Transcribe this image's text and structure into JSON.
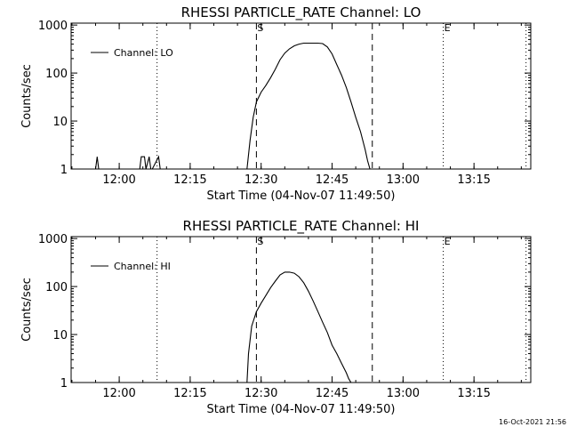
{
  "chart_data": [
    {
      "type": "line",
      "title": "RHESSI PARTICLE_RATE Channel: LO",
      "xlabel": "Start Time (04-Nov-07 11:49:50)",
      "ylabel": "Counts/sec",
      "yscale": "log",
      "ylim": [
        1,
        1000
      ],
      "xlim": [
        "11:49:50",
        "13:27:00"
      ],
      "x_ticks": [
        "12:00",
        "12:15",
        "12:30",
        "12:45",
        "13:00",
        "13:15"
      ],
      "y_ticks": [
        "1",
        "10",
        "100",
        "1000"
      ],
      "legend": {
        "label": "Channel: LO",
        "position": "top-left"
      },
      "grid": false,
      "markers": [
        {
          "label": "S",
          "time": "12:29:00",
          "style": "dashed"
        },
        {
          "label": "",
          "time": "12:53:30",
          "style": "dashed"
        },
        {
          "label": "",
          "time": "12:08:00",
          "style": "dotted"
        },
        {
          "label": "E",
          "time": "13:08:30",
          "style": "dotted"
        },
        {
          "label": "",
          "time": "13:26:00",
          "style": "dotted"
        }
      ],
      "series": [
        {
          "name": "Channel: LO",
          "x": [
            "11:55:00",
            "11:55:20",
            "11:55:40",
            "12:04:20",
            "12:04:40",
            "12:05:20",
            "12:05:40",
            "12:06:20",
            "12:06:40",
            "12:07:00",
            "12:08:20",
            "12:08:40",
            "12:09:00",
            "12:27:00",
            "12:27:40",
            "12:28:20",
            "12:29:00",
            "12:30:00",
            "12:31:00",
            "12:32:00",
            "12:33:00",
            "12:34:00",
            "12:35:00",
            "12:36:00",
            "12:37:00",
            "12:38:00",
            "12:39:00",
            "12:40:00",
            "12:41:00",
            "12:42:00",
            "12:43:00",
            "12:44:00",
            "12:45:00",
            "12:46:00",
            "12:47:00",
            "12:48:00",
            "12:49:00",
            "12:50:00",
            "12:51:00",
            "12:52:00",
            "12:52:30",
            "12:53:00"
          ],
          "y": [
            1,
            1.8,
            1,
            1,
            1.8,
            1.8,
            1,
            1.8,
            1,
            1,
            1.8,
            1,
            1,
            1,
            4,
            12,
            25,
            40,
            55,
            80,
            120,
            190,
            260,
            320,
            370,
            400,
            420,
            420,
            420,
            420,
            410,
            350,
            250,
            150,
            90,
            50,
            25,
            12,
            6,
            2.5,
            1.5,
            1
          ]
        }
      ]
    },
    {
      "type": "line",
      "title": "RHESSI PARTICLE_RATE Channel: HI",
      "xlabel": "Start Time (04-Nov-07 11:49:50)",
      "ylabel": "Counts/sec",
      "yscale": "log",
      "ylim": [
        1,
        1000
      ],
      "xlim": [
        "11:49:50",
        "13:27:00"
      ],
      "x_ticks": [
        "12:00",
        "12:15",
        "12:30",
        "12:45",
        "13:00",
        "13:15"
      ],
      "y_ticks": [
        "1",
        "10",
        "100",
        "1000"
      ],
      "legend": {
        "label": "Channel: HI",
        "position": "top-left"
      },
      "grid": false,
      "markers": [
        {
          "label": "S",
          "time": "12:29:00",
          "style": "dashed"
        },
        {
          "label": "",
          "time": "12:53:30",
          "style": "dashed"
        },
        {
          "label": "",
          "time": "12:08:00",
          "style": "dotted"
        },
        {
          "label": "E",
          "time": "13:08:30",
          "style": "dotted"
        },
        {
          "label": "",
          "time": "13:26:00",
          "style": "dotted"
        }
      ],
      "series": [
        {
          "name": "Channel: HI",
          "x": [
            "12:27:00",
            "12:27:20",
            "12:28:00",
            "12:29:00",
            "12:30:00",
            "12:31:00",
            "12:32:00",
            "12:33:00",
            "12:34:00",
            "12:35:00",
            "12:36:00",
            "12:37:00",
            "12:38:00",
            "12:39:00",
            "12:40:00",
            "12:41:00",
            "12:42:00",
            "12:43:00",
            "12:44:00",
            "12:45:00",
            "12:46:00",
            "12:47:00",
            "12:48:00",
            "12:48:30",
            "12:49:00"
          ],
          "y": [
            1,
            4,
            15,
            30,
            45,
            65,
            95,
            130,
            175,
            200,
            200,
            190,
            160,
            120,
            80,
            50,
            30,
            18,
            11,
            6,
            4,
            2.5,
            1.6,
            1.2,
            1
          ]
        }
      ]
    }
  ],
  "footer": {
    "timestamp": "16-Oct-2021 21:56"
  }
}
